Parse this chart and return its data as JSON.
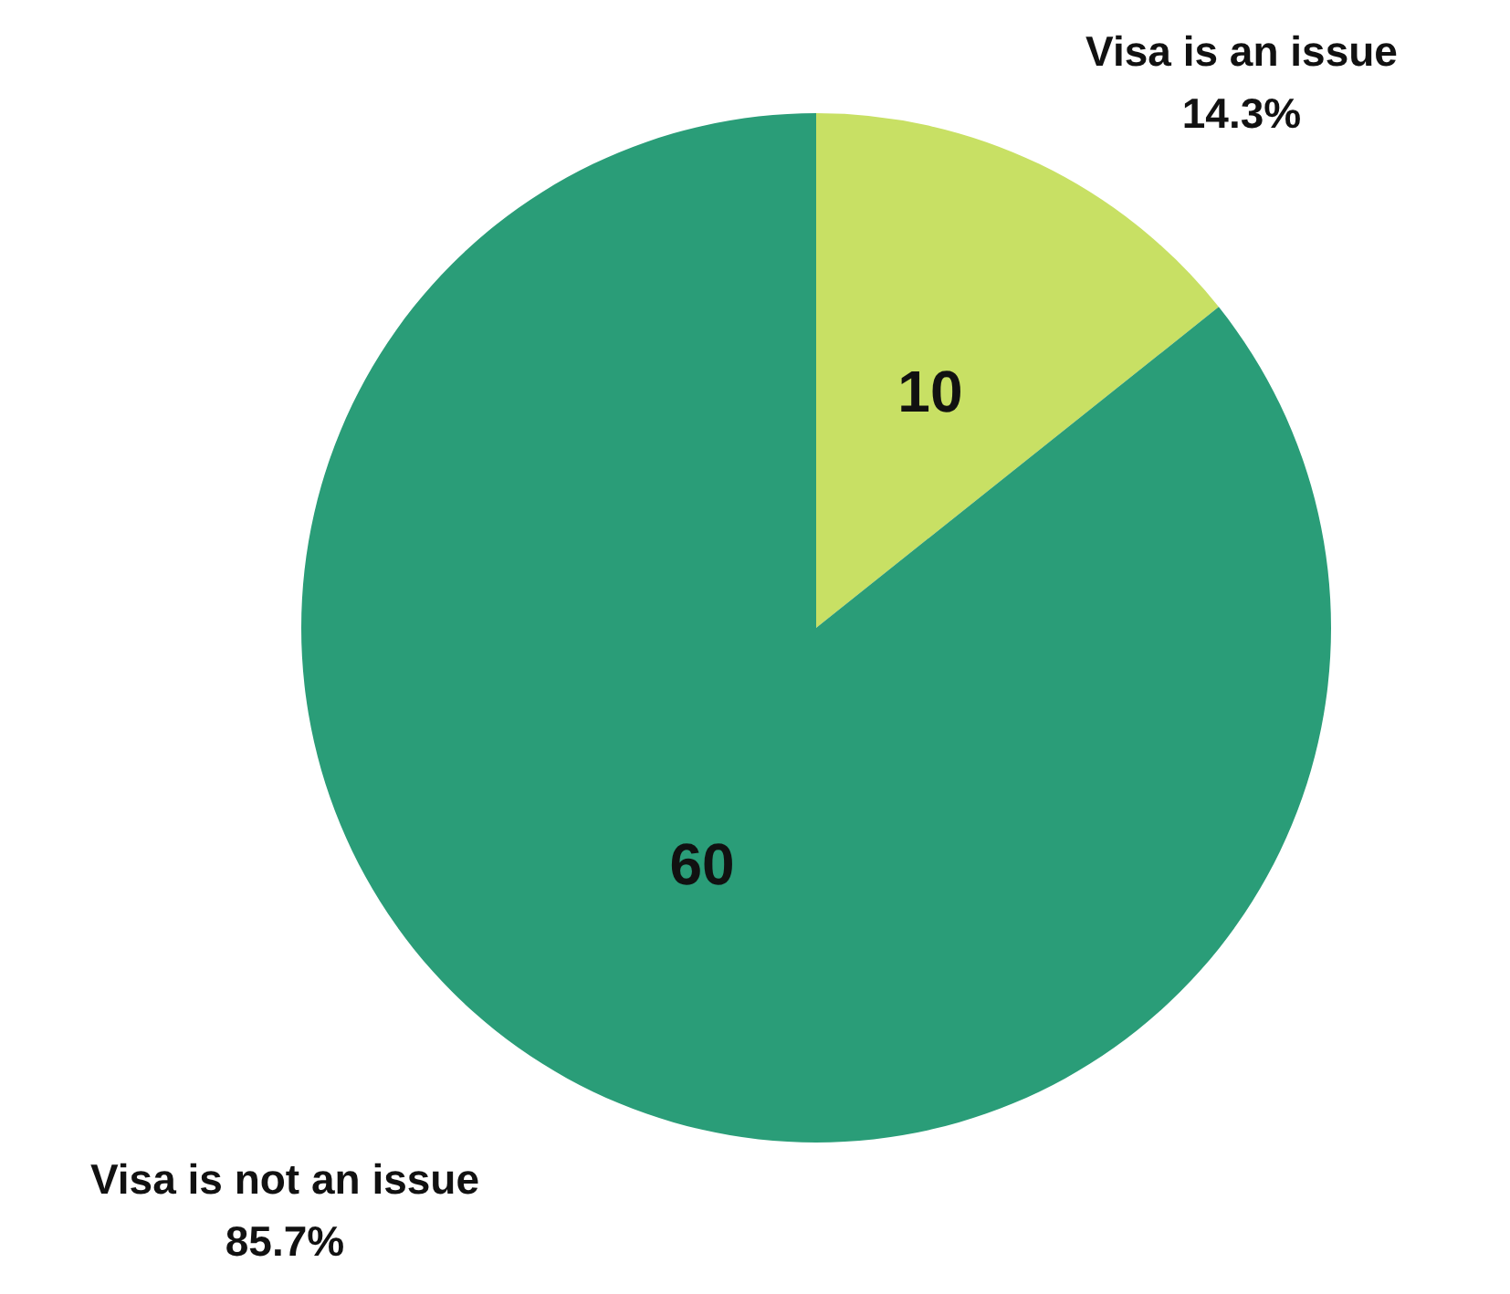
{
  "chart_data": {
    "type": "pie",
    "categories": [
      "Visa is an issue",
      "Visa is not an issue"
    ],
    "values": [
      10,
      60
    ],
    "colors": [
      "#c8e064",
      "#2a9d78"
    ],
    "data_labels": true,
    "annotations": [
      "14.3%",
      "85.7%"
    ],
    "legend": false
  }
}
